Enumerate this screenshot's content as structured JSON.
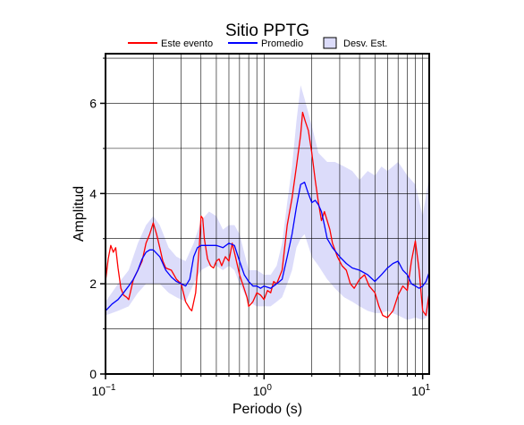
{
  "chart_data": {
    "type": "line",
    "title": "Sitio PPTG",
    "xlabel": "Periodo (s)",
    "ylabel": "Amplitud",
    "x_scale": "log",
    "xlim": [
      0.1,
      11
    ],
    "ylim": [
      0,
      7.1
    ],
    "grid": true,
    "legend_placement": "top",
    "x_ticks": [
      {
        "base": "10",
        "exp": "−1",
        "value": 0.1
      },
      {
        "base": "10",
        "exp": "0",
        "value": 1
      },
      {
        "base": "10",
        "exp": "1",
        "value": 10
      }
    ],
    "y_ticks": [
      "0",
      "2",
      "4",
      "6"
    ],
    "y_tick_values": [
      0,
      2,
      4,
      6
    ],
    "legend": [
      "Este evento",
      "Promedio",
      "Desv. Est."
    ],
    "series": [
      {
        "name": "Este evento",
        "color": "#ff0000",
        "points": [
          [
            0.1,
            2.05
          ],
          [
            0.104,
            2.55
          ],
          [
            0.108,
            2.85
          ],
          [
            0.112,
            2.7
          ],
          [
            0.116,
            2.8
          ],
          [
            0.12,
            2.35
          ],
          [
            0.125,
            1.9
          ],
          [
            0.13,
            1.75
          ],
          [
            0.136,
            1.7
          ],
          [
            0.14,
            1.65
          ],
          [
            0.15,
            2.1
          ],
          [
            0.16,
            2.3
          ],
          [
            0.17,
            2.5
          ],
          [
            0.18,
            2.9
          ],
          [
            0.19,
            3.1
          ],
          [
            0.2,
            3.35
          ],
          [
            0.21,
            3.1
          ],
          [
            0.22,
            2.8
          ],
          [
            0.23,
            2.5
          ],
          [
            0.24,
            2.35
          ],
          [
            0.26,
            2.3
          ],
          [
            0.28,
            2.1
          ],
          [
            0.3,
            2.0
          ],
          [
            0.32,
            1.6
          ],
          [
            0.34,
            1.45
          ],
          [
            0.35,
            1.4
          ],
          [
            0.37,
            1.8
          ],
          [
            0.39,
            2.8
          ],
          [
            0.4,
            3.5
          ],
          [
            0.41,
            3.45
          ],
          [
            0.42,
            3.0
          ],
          [
            0.44,
            2.55
          ],
          [
            0.46,
            2.4
          ],
          [
            0.48,
            2.35
          ],
          [
            0.5,
            2.5
          ],
          [
            0.52,
            2.55
          ],
          [
            0.54,
            2.4
          ],
          [
            0.57,
            2.6
          ],
          [
            0.6,
            2.5
          ],
          [
            0.63,
            2.9
          ],
          [
            0.66,
            2.6
          ],
          [
            0.7,
            2.2
          ],
          [
            0.74,
            1.95
          ],
          [
            0.78,
            1.7
          ],
          [
            0.8,
            1.5
          ],
          [
            0.85,
            1.6
          ],
          [
            0.9,
            1.8
          ],
          [
            0.95,
            1.75
          ],
          [
            1.0,
            1.65
          ],
          [
            1.05,
            1.85
          ],
          [
            1.1,
            1.8
          ],
          [
            1.15,
            2.05
          ],
          [
            1.2,
            2.0
          ],
          [
            1.3,
            2.3
          ],
          [
            1.4,
            3.3
          ],
          [
            1.5,
            3.9
          ],
          [
            1.6,
            4.6
          ],
          [
            1.7,
            5.3
          ],
          [
            1.75,
            5.8
          ],
          [
            1.82,
            5.6
          ],
          [
            1.9,
            5.4
          ],
          [
            2.0,
            4.9
          ],
          [
            2.1,
            4.3
          ],
          [
            2.2,
            3.8
          ],
          [
            2.3,
            3.4
          ],
          [
            2.4,
            3.6
          ],
          [
            2.5,
            3.4
          ],
          [
            2.6,
            3.2
          ],
          [
            2.7,
            2.9
          ],
          [
            2.9,
            2.6
          ],
          [
            3.1,
            2.4
          ],
          [
            3.3,
            2.3
          ],
          [
            3.5,
            2.0
          ],
          [
            3.7,
            1.9
          ],
          [
            4.0,
            2.1
          ],
          [
            4.3,
            2.2
          ],
          [
            4.6,
            1.95
          ],
          [
            5.0,
            1.8
          ],
          [
            5.3,
            1.5
          ],
          [
            5.6,
            1.3
          ],
          [
            6.0,
            1.25
          ],
          [
            6.5,
            1.4
          ],
          [
            7.0,
            1.75
          ],
          [
            7.5,
            1.95
          ],
          [
            8.0,
            1.85
          ],
          [
            8.5,
            2.5
          ],
          [
            9.0,
            2.95
          ],
          [
            9.5,
            2.3
          ],
          [
            10.0,
            1.4
          ],
          [
            10.5,
            1.3
          ],
          [
            11.0,
            1.8
          ]
        ]
      },
      {
        "name": "Promedio",
        "color": "#0000ff",
        "points": [
          [
            0.1,
            1.4
          ],
          [
            0.11,
            1.55
          ],
          [
            0.12,
            1.65
          ],
          [
            0.13,
            1.8
          ],
          [
            0.14,
            1.95
          ],
          [
            0.15,
            2.1
          ],
          [
            0.16,
            2.3
          ],
          [
            0.17,
            2.55
          ],
          [
            0.18,
            2.7
          ],
          [
            0.19,
            2.75
          ],
          [
            0.2,
            2.75
          ],
          [
            0.22,
            2.6
          ],
          [
            0.24,
            2.3
          ],
          [
            0.26,
            2.15
          ],
          [
            0.28,
            2.05
          ],
          [
            0.3,
            2.0
          ],
          [
            0.32,
            1.95
          ],
          [
            0.34,
            2.1
          ],
          [
            0.36,
            2.6
          ],
          [
            0.38,
            2.8
          ],
          [
            0.4,
            2.85
          ],
          [
            0.45,
            2.85
          ],
          [
            0.5,
            2.85
          ],
          [
            0.55,
            2.8
          ],
          [
            0.6,
            2.9
          ],
          [
            0.65,
            2.85
          ],
          [
            0.7,
            2.5
          ],
          [
            0.75,
            2.2
          ],
          [
            0.8,
            2.05
          ],
          [
            0.85,
            1.95
          ],
          [
            0.9,
            1.95
          ],
          [
            0.95,
            1.9
          ],
          [
            1.0,
            1.95
          ],
          [
            1.1,
            1.9
          ],
          [
            1.2,
            2.0
          ],
          [
            1.3,
            2.1
          ],
          [
            1.4,
            2.6
          ],
          [
            1.5,
            3.1
          ],
          [
            1.6,
            3.7
          ],
          [
            1.7,
            4.2
          ],
          [
            1.8,
            4.25
          ],
          [
            1.9,
            4.0
          ],
          [
            2.0,
            3.8
          ],
          [
            2.1,
            3.85
          ],
          [
            2.2,
            3.75
          ],
          [
            2.3,
            3.6
          ],
          [
            2.4,
            3.3
          ],
          [
            2.5,
            3.0
          ],
          [
            2.7,
            2.8
          ],
          [
            3.0,
            2.6
          ],
          [
            3.3,
            2.45
          ],
          [
            3.6,
            2.35
          ],
          [
            4.0,
            2.3
          ],
          [
            4.5,
            2.2
          ],
          [
            5.0,
            2.05
          ],
          [
            5.5,
            2.2
          ],
          [
            6.0,
            2.35
          ],
          [
            6.5,
            2.45
          ],
          [
            7.0,
            2.5
          ],
          [
            7.5,
            2.3
          ],
          [
            8.0,
            2.2
          ],
          [
            8.5,
            2.0
          ],
          [
            9.0,
            1.95
          ],
          [
            9.5,
            1.9
          ],
          [
            10.0,
            1.95
          ],
          [
            10.5,
            2.05
          ],
          [
            11.0,
            2.25
          ]
        ]
      },
      {
        "name": "Desv. Est.",
        "type": "band",
        "color": "#dcdcfa",
        "x": [
          0.1,
          0.12,
          0.14,
          0.16,
          0.18,
          0.2,
          0.22,
          0.25,
          0.28,
          0.32,
          0.36,
          0.4,
          0.45,
          0.5,
          0.55,
          0.6,
          0.65,
          0.7,
          0.8,
          0.9,
          1.0,
          1.1,
          1.2,
          1.3,
          1.4,
          1.5,
          1.6,
          1.7,
          1.8,
          2.0,
          2.2,
          2.5,
          2.8,
          3.2,
          3.6,
          4.0,
          4.5,
          5.0,
          5.5,
          6.0,
          7.0,
          8.0,
          9.0,
          10.0,
          11.0
        ],
        "upper": [
          1.6,
          2.0,
          2.3,
          2.9,
          3.3,
          3.5,
          3.3,
          2.8,
          2.6,
          2.5,
          2.9,
          3.4,
          3.6,
          3.5,
          3.2,
          3.3,
          3.3,
          3.1,
          2.3,
          2.3,
          2.2,
          2.2,
          2.4,
          2.9,
          3.8,
          4.6,
          5.6,
          6.4,
          6.1,
          5.5,
          4.9,
          4.7,
          4.7,
          4.6,
          4.5,
          4.3,
          4.5,
          4.4,
          4.6,
          4.5,
          4.7,
          4.4,
          4.2,
          3.5,
          4.4
        ],
        "lower": [
          1.3,
          1.4,
          1.5,
          1.8,
          2.0,
          2.0,
          2.0,
          1.8,
          1.7,
          1.6,
          2.0,
          2.3,
          2.4,
          2.4,
          2.3,
          2.4,
          2.3,
          2.0,
          1.6,
          1.5,
          1.5,
          1.5,
          1.6,
          1.7,
          2.0,
          2.3,
          2.8,
          3.0,
          3.1,
          2.6,
          2.4,
          2.1,
          1.9,
          1.7,
          1.6,
          1.5,
          1.4,
          1.35,
          1.35,
          1.4,
          1.3,
          1.2,
          1.25,
          1.2,
          1.3
        ]
      }
    ]
  }
}
